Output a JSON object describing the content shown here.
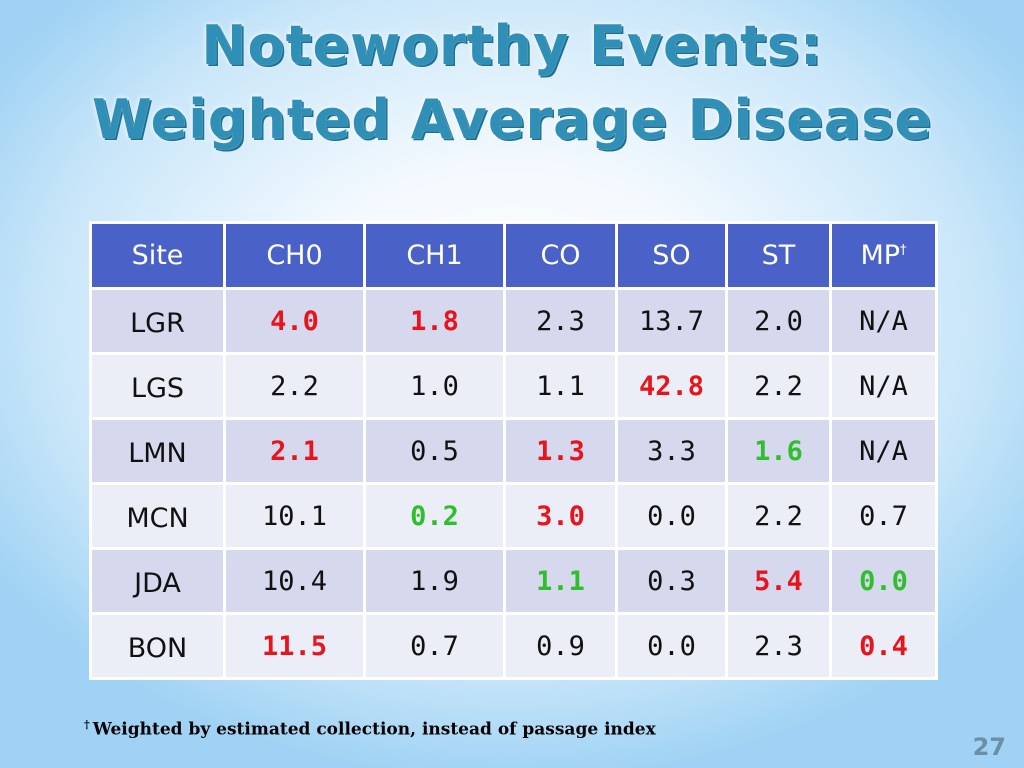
{
  "title": {
    "line1": "Noteworthy Events:",
    "line2": "Weighted Average Disease"
  },
  "table": {
    "headers": [
      "Site",
      "CH0",
      "CH1",
      "CO",
      "SO",
      "ST",
      "MP"
    ],
    "header_mark": "†",
    "rows": [
      {
        "site": "LGR",
        "cells": [
          {
            "v": "4.0",
            "c": "red"
          },
          {
            "v": "1.8",
            "c": "red"
          },
          {
            "v": "2.3",
            "c": ""
          },
          {
            "v": "13.7",
            "c": ""
          },
          {
            "v": "2.0",
            "c": ""
          },
          {
            "v": "N/A",
            "c": ""
          }
        ]
      },
      {
        "site": "LGS",
        "cells": [
          {
            "v": "2.2",
            "c": ""
          },
          {
            "v": "1.0",
            "c": ""
          },
          {
            "v": "1.1",
            "c": ""
          },
          {
            "v": "42.8",
            "c": "red"
          },
          {
            "v": "2.2",
            "c": ""
          },
          {
            "v": "N/A",
            "c": ""
          }
        ]
      },
      {
        "site": "LMN",
        "cells": [
          {
            "v": "2.1",
            "c": "red"
          },
          {
            "v": "0.5",
            "c": ""
          },
          {
            "v": "1.3",
            "c": "red"
          },
          {
            "v": "3.3",
            "c": ""
          },
          {
            "v": "1.6",
            "c": "green"
          },
          {
            "v": "N/A",
            "c": ""
          }
        ]
      },
      {
        "site": "MCN",
        "cells": [
          {
            "v": "10.1",
            "c": ""
          },
          {
            "v": "0.2",
            "c": "green"
          },
          {
            "v": "3.0",
            "c": "red"
          },
          {
            "v": "0.0",
            "c": ""
          },
          {
            "v": "2.2",
            "c": ""
          },
          {
            "v": "0.7",
            "c": ""
          }
        ]
      },
      {
        "site": "JDA",
        "cells": [
          {
            "v": "10.4",
            "c": ""
          },
          {
            "v": "1.9",
            "c": ""
          },
          {
            "v": "1.1",
            "c": "green"
          },
          {
            "v": "0.3",
            "c": ""
          },
          {
            "v": "5.4",
            "c": "red"
          },
          {
            "v": "0.0",
            "c": "green"
          }
        ]
      },
      {
        "site": "BON",
        "cells": [
          {
            "v": "11.5",
            "c": "red"
          },
          {
            "v": "0.7",
            "c": ""
          },
          {
            "v": "0.9",
            "c": ""
          },
          {
            "v": "0.0",
            "c": ""
          },
          {
            "v": "2.3",
            "c": ""
          },
          {
            "v": "0.4",
            "c": "red"
          }
        ]
      }
    ]
  },
  "footnote": {
    "mark": "†",
    "text": "Weighted by estimated collection, instead of passage index"
  },
  "page_number": "27",
  "colors": {
    "header_bg": "#4a62c8",
    "high": "#e8141c",
    "low": "#2fbf2c"
  }
}
